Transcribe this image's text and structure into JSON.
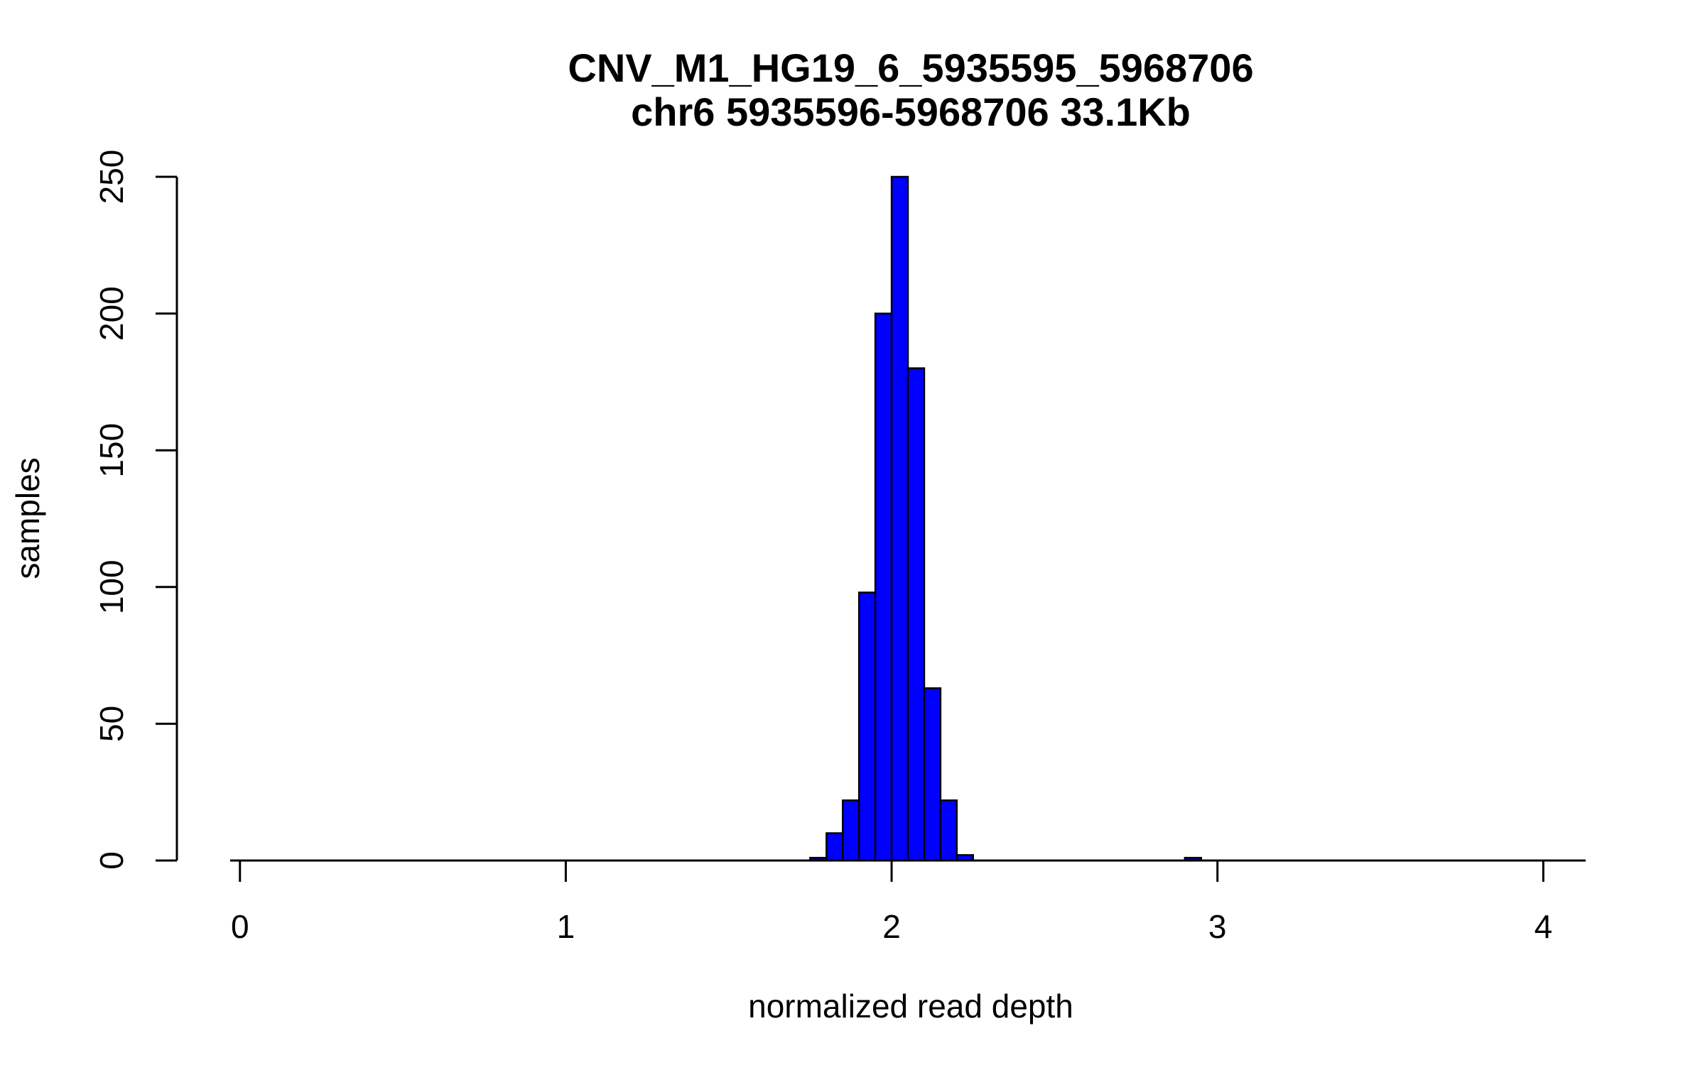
{
  "chart_data": {
    "type": "bar",
    "title": "CNV_M1_HG19_6_5935595_5968706",
    "subtitle": "chr6 5935596-5968706 33.1Kb",
    "xlabel": "normalized read depth",
    "ylabel": "samples",
    "xlim": [
      -0.03,
      4.13
    ],
    "ylim": [
      0,
      250
    ],
    "x_ticks": [
      0,
      1,
      2,
      3,
      4
    ],
    "y_ticks": [
      0,
      50,
      100,
      150,
      200,
      250
    ],
    "bin_width": 0.05,
    "bins": [
      {
        "x0": 1.75,
        "x1": 1.8,
        "value": 1
      },
      {
        "x0": 1.8,
        "x1": 1.85,
        "value": 10
      },
      {
        "x0": 1.85,
        "x1": 1.9,
        "value": 22
      },
      {
        "x0": 1.9,
        "x1": 1.95,
        "value": 98
      },
      {
        "x0": 1.95,
        "x1": 2.0,
        "value": 200
      },
      {
        "x0": 2.0,
        "x1": 2.05,
        "value": 250
      },
      {
        "x0": 2.05,
        "x1": 2.1,
        "value": 180
      },
      {
        "x0": 2.1,
        "x1": 2.15,
        "value": 63
      },
      {
        "x0": 2.15,
        "x1": 2.2,
        "value": 22
      },
      {
        "x0": 2.2,
        "x1": 2.25,
        "value": 2
      },
      {
        "x0": 2.9,
        "x1": 2.95,
        "value": 1
      }
    ],
    "bar_color": "#0000ff",
    "grid": false,
    "legend": "none"
  }
}
